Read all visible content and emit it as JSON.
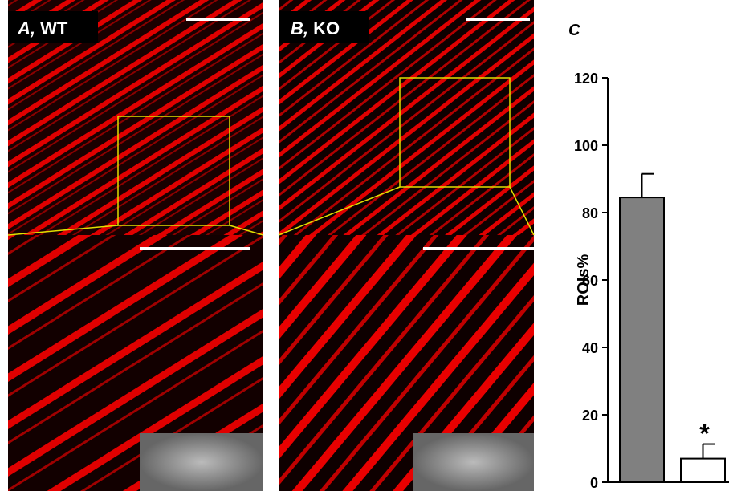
{
  "panels": [
    {
      "letter": "A,",
      "name": "WT"
    },
    {
      "letter": "B,",
      "name": "KO"
    }
  ],
  "chart_data": {
    "type": "bar",
    "panel_label": "C",
    "ylabel": "ROIs%",
    "categories": [
      null,
      null
    ],
    "values": [
      84.5,
      7
    ],
    "errors": [
      7,
      4.3
    ],
    "colors": [
      "#808080",
      "#ffffff"
    ],
    "annotation": "*",
    "ylim": [
      0,
      120
    ],
    "yticks": [
      0,
      20,
      40,
      60,
      80,
      100,
      120
    ]
  }
}
